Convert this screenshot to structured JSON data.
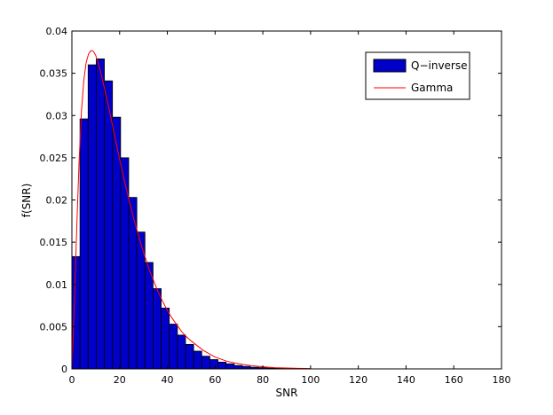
{
  "chart_data": {
    "type": "bar",
    "title": "",
    "xlabel": "SNR",
    "ylabel": "f(SNR)",
    "xlim": [
      0,
      180
    ],
    "ylim": [
      0,
      0.04
    ],
    "xticks": [
      "0",
      "20",
      "40",
      "60",
      "80",
      "100",
      "120",
      "140",
      "160",
      "180"
    ],
    "yticks": [
      "0",
      "0.005",
      "0.01",
      "0.015",
      "0.02",
      "0.025",
      "0.03",
      "0.035",
      "0.04"
    ],
    "grid": false,
    "legend_position": "top-right",
    "bar_color": "#0000c8",
    "line_color": "#ff0000",
    "series": [
      {
        "name": "Q−inverse",
        "kind": "histogram",
        "bin_width": 3.4,
        "x": [
          1.7,
          5.1,
          8.5,
          11.9,
          15.3,
          18.7,
          22.1,
          25.5,
          28.9,
          32.3,
          35.7,
          39.1,
          42.5,
          45.9,
          49.3,
          52.7,
          56.1,
          59.5,
          62.9,
          66.3,
          69.7,
          73.1,
          76.5,
          79.9,
          83.3,
          86.7,
          90.1,
          93.5,
          96.9
        ],
        "values": [
          0.0133,
          0.0296,
          0.036,
          0.0367,
          0.0341,
          0.0298,
          0.025,
          0.0203,
          0.0162,
          0.0126,
          0.0095,
          0.0072,
          0.0053,
          0.004,
          0.0029,
          0.0021,
          0.0015,
          0.0011,
          0.0008,
          0.0006,
          0.0004,
          0.0003,
          0.0002,
          0.00015,
          0.0001,
          7e-05,
          5e-05,
          3e-05,
          2e-05
        ]
      },
      {
        "name": "Gamma",
        "kind": "line",
        "x": [
          0,
          1,
          2,
          3,
          4,
          5,
          6,
          7,
          8,
          9,
          10,
          11,
          12,
          14,
          16,
          18,
          20,
          22,
          24,
          26,
          28,
          30,
          32,
          34,
          36,
          38,
          40,
          42,
          44,
          46,
          48,
          50,
          55,
          60,
          65,
          70,
          75,
          80,
          85,
          90,
          95,
          100
        ],
        "values": [
          0,
          0.0075,
          0.0165,
          0.0245,
          0.0305,
          0.0342,
          0.0363,
          0.0373,
          0.0377,
          0.0376,
          0.0371,
          0.0362,
          0.0352,
          0.0328,
          0.0302,
          0.0275,
          0.0248,
          0.0223,
          0.0199,
          0.0177,
          0.0157,
          0.0138,
          0.0121,
          0.0106,
          0.0092,
          0.008,
          0.0069,
          0.006,
          0.0052,
          0.0044,
          0.0038,
          0.0033,
          0.0022,
          0.0014,
          0.0009,
          0.0006,
          0.0004,
          0.00025,
          0.00015,
          0.0001,
          6e-05,
          4e-05
        ]
      }
    ]
  }
}
